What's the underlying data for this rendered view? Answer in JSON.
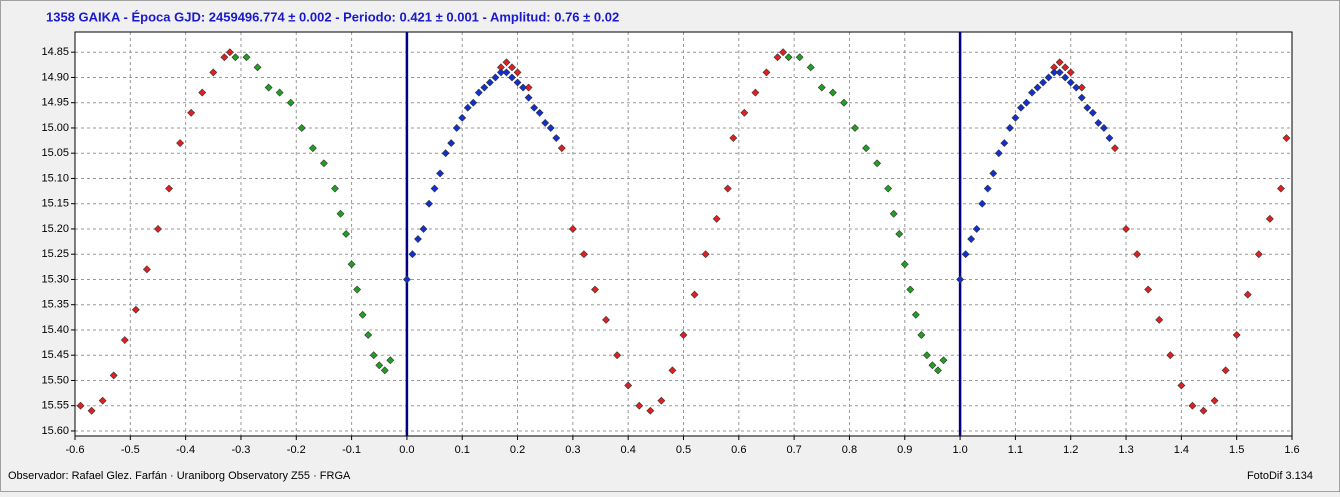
{
  "chart_data": {
    "type": "scatter",
    "title": "1358 GAIKA - Época GJD: 2459496.774 ± 0.002 - Periodo: 0.421 ± 0.001 - Amplitud: 0.76 ± 0.02",
    "footer_left": "Observador: Rafael Glez. Farfán · Uraniborg Observatory Z55 · FRGA",
    "footer_right": "FotoDif 3.134",
    "xlim": [
      -0.6,
      1.6
    ],
    "ylim": [
      15.61,
      14.81
    ],
    "xticks": [
      -0.6,
      -0.5,
      -0.4,
      -0.3,
      -0.2,
      -0.1,
      {
        "value": 0,
        "label": "0.0"
      },
      0.1,
      0.2,
      0.3,
      0.4,
      0.5,
      0.6,
      0.7,
      0.8,
      0.9,
      {
        "value": 1,
        "label": "1.0"
      },
      1.1,
      1.2,
      1.3,
      1.4,
      1.5,
      1.6
    ],
    "yticks": [
      14.85,
      {
        "value": 14.9,
        "label": "14.90"
      },
      14.95,
      {
        "value": 15,
        "label": "15.00"
      },
      15.05,
      {
        "value": 15.1,
        "label": "15.10"
      },
      15.15,
      {
        "value": 15.2,
        "label": "15.20"
      },
      15.25,
      {
        "value": 15.3,
        "label": "15.30"
      },
      15.35,
      {
        "value": 15.4,
        "label": "15.40"
      },
      15.45,
      {
        "value": 15.5,
        "label": "15.50"
      },
      15.55,
      {
        "value": 15.6,
        "label": "15.60"
      }
    ],
    "grid": true,
    "phase_markers": [
      0,
      1
    ],
    "phase_marker_color": "#000080",
    "series": [
      {
        "color": "#e02020",
        "x": [
          -0.59,
          -0.57,
          -0.55,
          -0.53,
          -0.51,
          -0.49,
          -0.47,
          -0.45,
          -0.43,
          -0.41,
          -0.39,
          -0.37,
          -0.35,
          -0.33,
          -0.32,
          0.17,
          0.18,
          0.19,
          0.2,
          0.22,
          0.28,
          0.3,
          0.32,
          0.34,
          0.36,
          0.38,
          0.4,
          0.42,
          0.44,
          0.46,
          0.48,
          0.5,
          0.52,
          0.54,
          0.56,
          0.58,
          0.59,
          0.61,
          0.63,
          0.65,
          0.67,
          0.68,
          1.17,
          1.18,
          1.19,
          1.2,
          1.22,
          1.28,
          1.3,
          1.32,
          1.34,
          1.36,
          1.38,
          1.4,
          1.42,
          1.44,
          1.46,
          1.48,
          1.5,
          1.52,
          1.54,
          1.56,
          1.58,
          1.59
        ],
        "values": [
          15.55,
          15.56,
          15.54,
          15.49,
          15.42,
          15.36,
          15.28,
          15.2,
          15.12,
          15.03,
          14.97,
          14.93,
          14.89,
          14.86,
          14.85,
          14.88,
          14.87,
          14.88,
          14.89,
          14.92,
          15.04,
          15.2,
          15.25,
          15.32,
          15.38,
          15.45,
          15.51,
          15.55,
          15.56,
          15.54,
          15.48,
          15.41,
          15.33,
          15.25,
          15.18,
          15.12,
          15.02,
          14.97,
          14.93,
          14.89,
          14.86,
          14.85,
          14.88,
          14.87,
          14.88,
          14.89,
          14.92,
          15.04,
          15.2,
          15.25,
          15.32,
          15.38,
          15.45,
          15.51,
          15.55,
          15.56,
          15.54,
          15.48,
          15.41,
          15.33,
          15.25,
          15.18,
          15.12,
          15.02
        ]
      },
      {
        "color": "#20a020",
        "x": [
          -0.31,
          -0.29,
          -0.27,
          -0.25,
          -0.23,
          -0.21,
          -0.19,
          -0.17,
          -0.15,
          -0.13,
          -0.12,
          -0.11,
          -0.1,
          -0.09,
          -0.08,
          -0.07,
          -0.06,
          -0.05,
          -0.04,
          -0.03,
          0.69,
          0.71,
          0.73,
          0.75,
          0.77,
          0.79,
          0.81,
          0.83,
          0.85,
          0.87,
          0.88,
          0.89,
          0.9,
          0.91,
          0.92,
          0.93,
          0.94,
          0.95,
          0.96,
          0.97
        ],
        "values": [
          14.86,
          14.86,
          14.88,
          14.92,
          14.93,
          14.95,
          15.0,
          15.04,
          15.07,
          15.12,
          15.17,
          15.21,
          15.27,
          15.32,
          15.37,
          15.41,
          15.45,
          15.47,
          15.48,
          15.46,
          14.86,
          14.86,
          14.88,
          14.92,
          14.93,
          14.95,
          15.0,
          15.04,
          15.07,
          15.12,
          15.17,
          15.21,
          15.27,
          15.32,
          15.37,
          15.41,
          15.45,
          15.47,
          15.48,
          15.46
        ]
      },
      {
        "color": "#1030d0",
        "x": [
          0,
          0.01,
          0.02,
          0.03,
          0.04,
          0.05,
          0.06,
          0.07,
          0.08,
          0.09,
          0.1,
          0.11,
          0.12,
          0.13,
          0.14,
          0.15,
          0.16,
          0.17,
          0.18,
          0.19,
          0.2,
          0.21,
          0.22,
          0.23,
          0.24,
          0.25,
          0.26,
          0.27,
          1,
          1.01,
          1.02,
          1.03,
          1.04,
          1.05,
          1.06,
          1.07,
          1.08,
          1.09,
          1.1,
          1.11,
          1.12,
          1.13,
          1.14,
          1.15,
          1.16,
          1.17,
          1.18,
          1.19,
          1.2,
          1.21,
          1.22,
          1.23,
          1.24,
          1.25,
          1.26,
          1.27
        ],
        "values": [
          15.3,
          15.25,
          15.22,
          15.2,
          15.15,
          15.12,
          15.09,
          15.05,
          15.03,
          15.0,
          14.98,
          14.96,
          14.95,
          14.93,
          14.92,
          14.91,
          14.9,
          14.89,
          14.89,
          14.9,
          14.91,
          14.92,
          14.94,
          14.96,
          14.97,
          14.99,
          15.0,
          15.02,
          15.3,
          15.25,
          15.22,
          15.2,
          15.15,
          15.12,
          15.09,
          15.05,
          15.03,
          15.0,
          14.98,
          14.96,
          14.95,
          14.93,
          14.92,
          14.91,
          14.9,
          14.89,
          14.89,
          14.9,
          14.91,
          14.92,
          14.94,
          14.96,
          14.97,
          14.99,
          15.0,
          15.02
        ]
      }
    ]
  }
}
